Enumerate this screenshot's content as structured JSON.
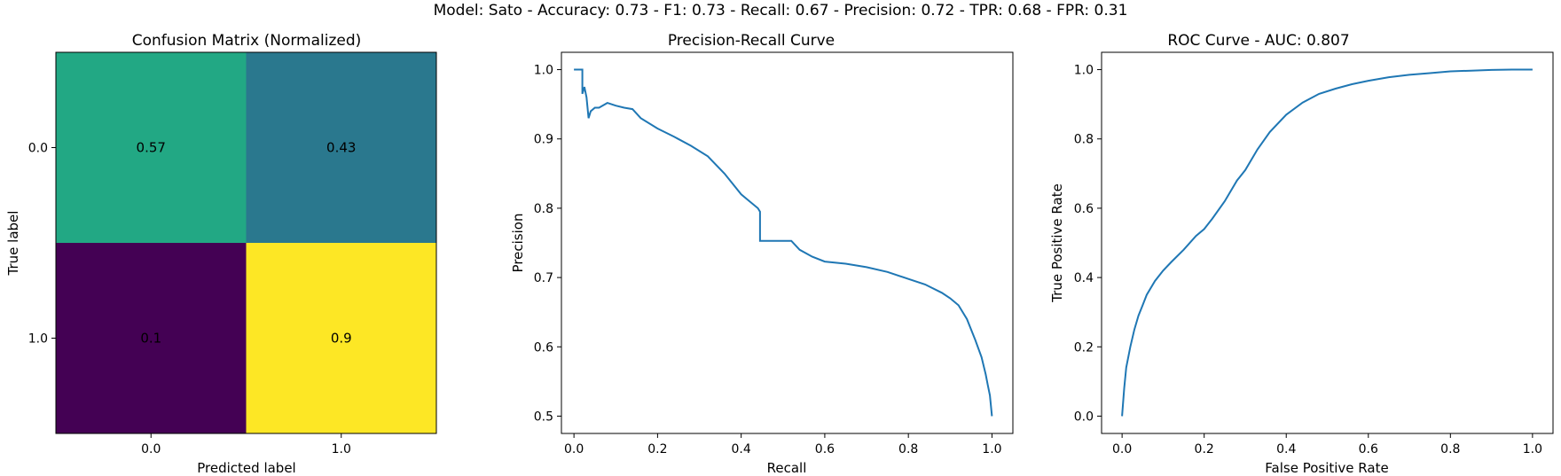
{
  "figure": {
    "suptitle": "Model: Sato - Accuracy: 0.73 - F1: 0.73 - Recall: 0.67 - Precision: 0.72 - TPR: 0.68 - FPR: 0.31"
  },
  "colors": {
    "line": "#1f77b4",
    "cell_high": "#fde725",
    "cell_mid_high": "#22a884",
    "cell_mid": "#2a788e",
    "cell_low": "#440154",
    "text_dark": "#333333",
    "text_light": "#f5d000"
  },
  "chart_data": [
    {
      "type": "heatmap",
      "title": "Confusion Matrix (Normalized)",
      "xlabel": "Predicted label",
      "ylabel": "True label",
      "x_categories": [
        "0.0",
        "1.0"
      ],
      "y_categories": [
        "0.0",
        "1.0"
      ],
      "values": [
        [
          0.57,
          0.43
        ],
        [
          0.1,
          0.9
        ]
      ],
      "value_labels": [
        [
          "0.57",
          "0.43"
        ],
        [
          "0.1",
          "0.9"
        ]
      ],
      "colorbar": false
    },
    {
      "type": "line",
      "title": "Precision-Recall Curve",
      "xlabel": "Recall",
      "ylabel": "Precision",
      "xlim": [
        -0.03,
        1.05
      ],
      "ylim": [
        0.475,
        1.025
      ],
      "xticks": [
        "0.0",
        "0.2",
        "0.4",
        "0.6",
        "0.8",
        "1.0"
      ],
      "yticks": [
        "0.5",
        "0.6",
        "0.7",
        "0.8",
        "0.9",
        "1.0"
      ],
      "grid": false,
      "series": [
        {
          "x": [
            0.0,
            0.02,
            0.02,
            0.025,
            0.03,
            0.035,
            0.04,
            0.05,
            0.06,
            0.08,
            0.1,
            0.12,
            0.14,
            0.16,
            0.2,
            0.24,
            0.28,
            0.32,
            0.36,
            0.4,
            0.42,
            0.44,
            0.445,
            0.445,
            0.52,
            0.54,
            0.57,
            0.6,
            0.65,
            0.7,
            0.75,
            0.8,
            0.84,
            0.88,
            0.9,
            0.92,
            0.94,
            0.96,
            0.975,
            0.985,
            0.99,
            0.995,
            1.0
          ],
          "y": [
            1.0,
            1.0,
            0.965,
            0.975,
            0.96,
            0.93,
            0.94,
            0.945,
            0.945,
            0.952,
            0.948,
            0.945,
            0.943,
            0.93,
            0.915,
            0.903,
            0.89,
            0.875,
            0.85,
            0.82,
            0.81,
            0.8,
            0.795,
            0.753,
            0.753,
            0.74,
            0.73,
            0.723,
            0.72,
            0.715,
            0.708,
            0.698,
            0.69,
            0.678,
            0.67,
            0.66,
            0.64,
            0.61,
            0.585,
            0.56,
            0.545,
            0.53,
            0.5
          ]
        }
      ]
    },
    {
      "type": "line",
      "title": "ROC Curve - AUC: 0.807",
      "xlabel": "False Positive Rate",
      "ylabel": "True Positive Rate",
      "xlim": [
        -0.05,
        1.05
      ],
      "ylim": [
        -0.05,
        1.05
      ],
      "xticks": [
        "0.0",
        "0.2",
        "0.4",
        "0.6",
        "0.8",
        "1.0"
      ],
      "yticks": [
        "0.0",
        "0.2",
        "0.4",
        "0.6",
        "0.8",
        "1.0"
      ],
      "grid": false,
      "series": [
        {
          "x": [
            0.0,
            0.005,
            0.01,
            0.02,
            0.03,
            0.04,
            0.05,
            0.06,
            0.08,
            0.1,
            0.12,
            0.15,
            0.18,
            0.2,
            0.22,
            0.25,
            0.28,
            0.3,
            0.33,
            0.36,
            0.4,
            0.44,
            0.48,
            0.52,
            0.56,
            0.6,
            0.65,
            0.7,
            0.75,
            0.8,
            0.85,
            0.9,
            0.95,
            1.0
          ],
          "y": [
            0.0,
            0.08,
            0.14,
            0.2,
            0.25,
            0.29,
            0.32,
            0.35,
            0.39,
            0.42,
            0.445,
            0.48,
            0.52,
            0.54,
            0.57,
            0.62,
            0.68,
            0.71,
            0.77,
            0.82,
            0.87,
            0.905,
            0.93,
            0.945,
            0.958,
            0.968,
            0.978,
            0.985,
            0.99,
            0.995,
            0.997,
            0.999,
            1.0,
            1.0
          ]
        }
      ]
    }
  ]
}
